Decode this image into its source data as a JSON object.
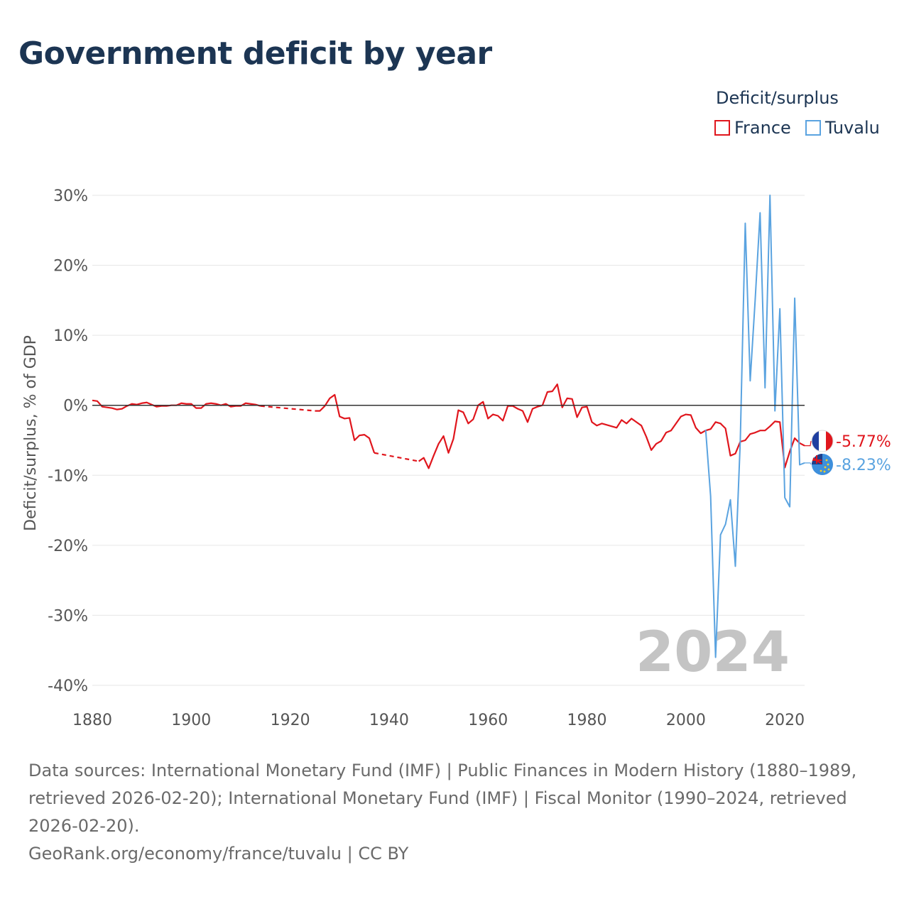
{
  "title": "Government deficit by year",
  "legend": {
    "title": "Deficit/surplus",
    "items": [
      {
        "label": "France",
        "color": "#e0161d"
      },
      {
        "label": "Tuvalu",
        "color": "#5aa3e0"
      }
    ]
  },
  "footer": {
    "sources": "Data sources: International Monetary Fund (IMF) | Public Finances in Modern History (1880–1989, retrieved 2026-02-20); International Monetary Fund (IMF) | Fiscal Monitor (1990–2024, retrieved 2026-02-20).",
    "credit": "GeoRank.org/economy/france/tuvalu | CC BY"
  },
  "chart_data": {
    "type": "line",
    "title": "Government deficit by year",
    "xlabel": "",
    "ylabel": "Deficit/surplus, % of GDP",
    "xlim": [
      1880,
      2024
    ],
    "ylim": [
      -40,
      30
    ],
    "x_ticks": [
      1880,
      1900,
      1920,
      1940,
      1960,
      1980,
      2000,
      2020
    ],
    "y_ticks": [
      -40,
      -30,
      -20,
      -10,
      0,
      10,
      20,
      30
    ],
    "y_tick_labels": [
      "-40%",
      "-30%",
      "-20%",
      "-10%",
      "0%",
      "10%",
      "20%",
      "30%"
    ],
    "year_label": "2024",
    "grid": true,
    "legend_position": "top-right",
    "series": [
      {
        "name": "France",
        "color": "#e0161d",
        "end_label": "-5.77%",
        "points": [
          [
            1880,
            0.7
          ],
          [
            1881,
            0.6
          ],
          [
            1882,
            -0.2
          ],
          [
            1883,
            -0.3
          ],
          [
            1884,
            -0.4
          ],
          [
            1885,
            -0.6
          ],
          [
            1886,
            -0.5
          ],
          [
            1887,
            -0.1
          ],
          [
            1888,
            0.2
          ],
          [
            1889,
            0.1
          ],
          [
            1890,
            0.3
          ],
          [
            1891,
            0.4
          ],
          [
            1892,
            0.1
          ],
          [
            1893,
            -0.2
          ],
          [
            1894,
            -0.1
          ],
          [
            1895,
            -0.1
          ],
          [
            1896,
            0.0
          ],
          [
            1897,
            0.0
          ],
          [
            1898,
            0.3
          ],
          [
            1899,
            0.2
          ],
          [
            1900,
            0.2
          ],
          [
            1901,
            -0.4
          ],
          [
            1902,
            -0.4
          ],
          [
            1903,
            0.2
          ],
          [
            1904,
            0.3
          ],
          [
            1905,
            0.2
          ],
          [
            1906,
            0.0
          ],
          [
            1907,
            0.2
          ],
          [
            1908,
            -0.2
          ],
          [
            1909,
            -0.1
          ],
          [
            1910,
            -0.1
          ],
          [
            1911,
            0.3
          ],
          [
            1912,
            0.2
          ],
          [
            1913,
            0.1
          ],
          [
            1914,
            -0.1
          ],
          [
            1914,
            -0.1
          ],
          [
            1925,
            -0.8
          ],
          [
            1925,
            -0.8
          ],
          [
            1926,
            -0.8
          ],
          [
            1927,
            -0.1
          ],
          [
            1928,
            1.0
          ],
          [
            1929,
            1.5
          ],
          [
            1930,
            -1.6
          ],
          [
            1931,
            -1.9
          ],
          [
            1932,
            -1.8
          ],
          [
            1933,
            -5.0
          ],
          [
            1934,
            -4.3
          ],
          [
            1935,
            -4.2
          ],
          [
            1936,
            -4.7
          ],
          [
            1937,
            -6.8
          ],
          [
            1937,
            -6.8
          ],
          [
            1946,
            -8.0
          ],
          [
            1946,
            -8.0
          ],
          [
            1947,
            -7.5
          ],
          [
            1948,
            -9.0
          ],
          [
            1949,
            -7.2
          ],
          [
            1950,
            -5.5
          ],
          [
            1951,
            -4.4
          ],
          [
            1952,
            -6.8
          ],
          [
            1953,
            -4.8
          ],
          [
            1954,
            -0.7
          ],
          [
            1955,
            -1.0
          ],
          [
            1956,
            -2.6
          ],
          [
            1957,
            -2.0
          ],
          [
            1958,
            0.0
          ],
          [
            1959,
            0.5
          ],
          [
            1960,
            -1.9
          ],
          [
            1961,
            -1.3
          ],
          [
            1962,
            -1.5
          ],
          [
            1963,
            -2.2
          ],
          [
            1964,
            -0.1
          ],
          [
            1965,
            -0.1
          ],
          [
            1966,
            -0.5
          ],
          [
            1967,
            -0.8
          ],
          [
            1968,
            -2.4
          ],
          [
            1969,
            -0.5
          ],
          [
            1970,
            -0.2
          ],
          [
            1971,
            0.0
          ],
          [
            1972,
            1.9
          ],
          [
            1973,
            2.0
          ],
          [
            1974,
            3.0
          ],
          [
            1975,
            -0.3
          ],
          [
            1976,
            1.0
          ],
          [
            1977,
            0.9
          ],
          [
            1978,
            -1.7
          ],
          [
            1979,
            -0.3
          ],
          [
            1980,
            -0.2
          ],
          [
            1981,
            -2.4
          ],
          [
            1982,
            -2.9
          ],
          [
            1983,
            -2.6
          ],
          [
            1984,
            -2.8
          ],
          [
            1985,
            -3.0
          ],
          [
            1986,
            -3.2
          ],
          [
            1987,
            -2.1
          ],
          [
            1988,
            -2.6
          ],
          [
            1989,
            -1.9
          ],
          [
            1990,
            -2.4
          ],
          [
            1991,
            -2.9
          ],
          [
            1992,
            -4.5
          ],
          [
            1993,
            -6.4
          ],
          [
            1994,
            -5.5
          ],
          [
            1995,
            -5.1
          ],
          [
            1996,
            -3.9
          ],
          [
            1997,
            -3.6
          ],
          [
            1998,
            -2.6
          ],
          [
            1999,
            -1.6
          ],
          [
            2000,
            -1.3
          ],
          [
            2001,
            -1.4
          ],
          [
            2002,
            -3.2
          ],
          [
            2003,
            -4.0
          ],
          [
            2004,
            -3.6
          ],
          [
            2005,
            -3.4
          ],
          [
            2006,
            -2.4
          ],
          [
            2007,
            -2.6
          ],
          [
            2008,
            -3.3
          ],
          [
            2009,
            -7.2
          ],
          [
            2010,
            -6.9
          ],
          [
            2011,
            -5.2
          ],
          [
            2012,
            -5.0
          ],
          [
            2013,
            -4.1
          ],
          [
            2014,
            -3.9
          ],
          [
            2015,
            -3.6
          ],
          [
            2016,
            -3.6
          ],
          [
            2017,
            -3.0
          ],
          [
            2018,
            -2.3
          ],
          [
            2019,
            -2.4
          ],
          [
            2020,
            -8.9
          ],
          [
            2021,
            -6.6
          ],
          [
            2022,
            -4.7
          ],
          [
            2023,
            -5.4
          ],
          [
            2024,
            -5.77
          ]
        ],
        "dashed_ranges": [
          [
            1914,
            1925
          ],
          [
            1937,
            1946
          ]
        ]
      },
      {
        "name": "Tuvalu",
        "color": "#5aa3e0",
        "end_label": "-8.23%",
        "points": [
          [
            2004,
            -3.5
          ],
          [
            2005,
            -13.0
          ],
          [
            2006,
            -36.0
          ],
          [
            2007,
            -18.5
          ],
          [
            2008,
            -17.0
          ],
          [
            2009,
            -13.5
          ],
          [
            2010,
            -23.0
          ],
          [
            2011,
            -5.0
          ],
          [
            2012,
            26.0
          ],
          [
            2013,
            3.5
          ],
          [
            2014,
            15.0
          ],
          [
            2015,
            27.5
          ],
          [
            2016,
            2.5
          ],
          [
            2017,
            30.0
          ],
          [
            2018,
            -0.8
          ],
          [
            2019,
            13.8
          ],
          [
            2020,
            -13.2
          ],
          [
            2021,
            -14.5
          ],
          [
            2022,
            15.3
          ],
          [
            2023,
            -8.5
          ],
          [
            2024,
            -8.23
          ]
        ],
        "dashed_ranges": []
      }
    ]
  }
}
